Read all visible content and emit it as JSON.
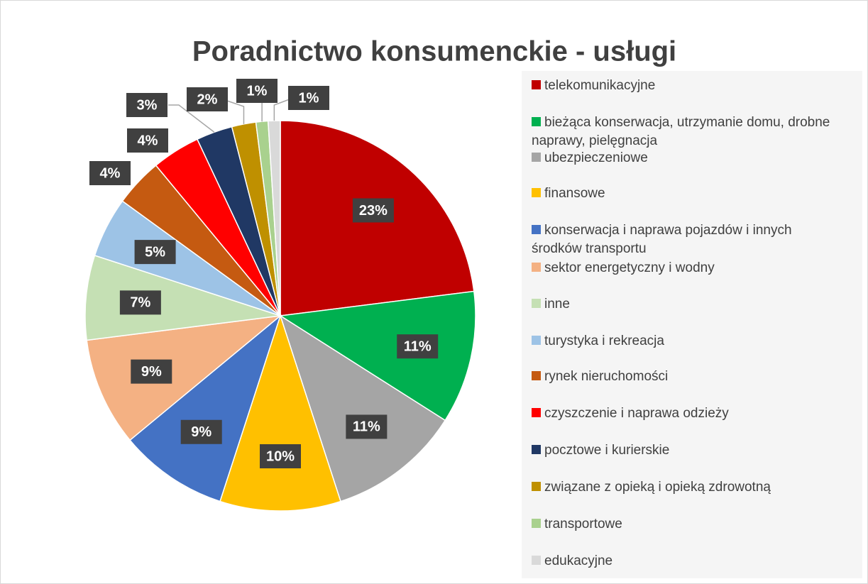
{
  "chart_data": {
    "type": "pie",
    "title": "Poradnictwo konsumenckie - usługi",
    "categories": [
      "telekomunikacyjne",
      "bieżąca konserwacja, utrzymanie domu, drobne naprawy, pielęgnacja",
      "ubezpieczeniowe",
      "finansowe",
      "konserwacja i naprawa pojazdów i innych środków transportu",
      "sektor energetyczny i wodny",
      "inne",
      "turystyka i rekreacja",
      "rynek nieruchomości",
      "czyszczenie i naprawa odzieży",
      "pocztowe i kurierskie",
      "związane z opieką i opieką zdrowotną",
      "transportowe",
      "edukacyjne"
    ],
    "values": [
      23,
      11,
      11,
      10,
      9,
      9,
      7,
      5,
      4,
      4,
      3,
      2,
      1,
      1
    ],
    "value_labels": [
      "23%",
      "11%",
      "11%",
      "10%",
      "9%",
      "9%",
      "7%",
      "5%",
      "4%",
      "4%",
      "3%",
      "2%",
      "1%",
      "1%"
    ],
    "colors": [
      "#c00000",
      "#00b050",
      "#a5a5a5",
      "#ffc000",
      "#4472c4",
      "#f4b183",
      "#c5e0b4",
      "#9dc3e6",
      "#c55a11",
      "#ff0000",
      "#203864",
      "#bf9000",
      "#a9d18e",
      "#d9d9d9"
    ],
    "legend": "right"
  }
}
